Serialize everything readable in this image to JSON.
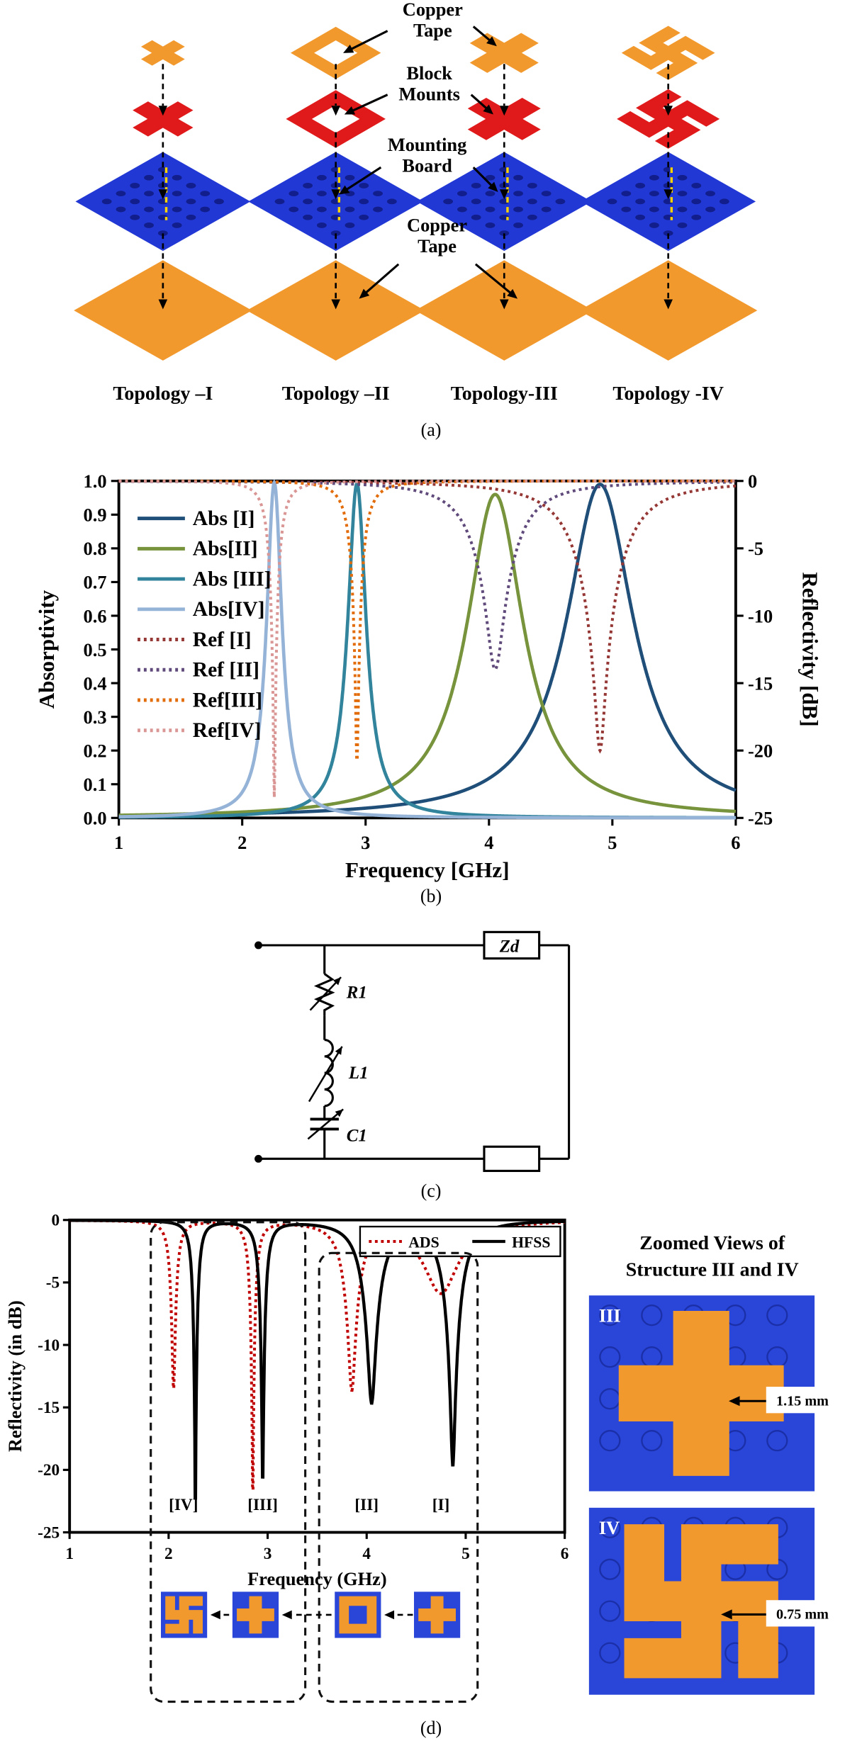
{
  "figure": {
    "captions": {
      "a": "(a)",
      "b": "(b)",
      "c": "(c)",
      "d": "(d)"
    }
  },
  "panel_a": {
    "annotations": {
      "copper_tape_top": "Copper\nTape",
      "block_mounts": "Block\nMounts",
      "mounting_board": "Mounting\nBoard",
      "copper_tape_ground": "Copper\nTape"
    },
    "topologies": [
      {
        "label": "Topology –I",
        "resonator_shape": "cross"
      },
      {
        "label": "Topology –II",
        "resonator_shape": "square-ring"
      },
      {
        "label": "Topology-III",
        "resonator_shape": "cross"
      },
      {
        "label": "Topology -IV",
        "resonator_shape": "swastika"
      }
    ],
    "colors": {
      "copper": "#F2992E",
      "block_mount": "#E01A1A",
      "board": "#2238D4",
      "board_hole": "#111E8C"
    }
  },
  "chart_data": [
    {
      "id": "absorptivity-reflectivity",
      "type": "line",
      "xlabel": "Frequency [GHz]",
      "ylabel_left": "Absorptivity",
      "ylabel_right": "Reflectivity [dB]",
      "xlim": [
        1,
        6
      ],
      "xticks": [
        1,
        2,
        3,
        4,
        5,
        6
      ],
      "ylim_left": [
        0.0,
        1.0
      ],
      "yticks_left": [
        0.0,
        0.1,
        0.2,
        0.3,
        0.4,
        0.5,
        0.6,
        0.7,
        0.8,
        0.9,
        1.0
      ],
      "ylim_right": [
        -25,
        0
      ],
      "yticks_right": [
        0,
        -5,
        -10,
        -15,
        -20,
        -25
      ],
      "legend_position": "top-left-inside",
      "series": [
        {
          "name": "Abs [I]",
          "kind": "absorptivity",
          "axis": "left",
          "style": "solid",
          "color": "#1F4E79",
          "f0_ghz": 4.9,
          "hwhm_ghz": 0.33,
          "peak_absorptivity": 0.99
        },
        {
          "name": "Abs[II]",
          "kind": "absorptivity",
          "axis": "left",
          "style": "solid",
          "color": "#77933C",
          "f0_ghz": 4.05,
          "hwhm_ghz": 0.28,
          "peak_absorptivity": 0.96
        },
        {
          "name": "Abs [III]",
          "kind": "absorptivity",
          "axis": "left",
          "style": "solid",
          "color": "#31849B",
          "f0_ghz": 2.93,
          "hwhm_ghz": 0.09,
          "peak_absorptivity": 0.992
        },
        {
          "name": "Abs[IV]",
          "kind": "absorptivity",
          "axis": "left",
          "style": "solid",
          "color": "#95B3D7",
          "f0_ghz": 2.26,
          "hwhm_ghz": 0.075,
          "peak_absorptivity": 0.9955
        },
        {
          "name": "Ref [I]",
          "kind": "reflectivity",
          "axis": "right",
          "style": "dotted",
          "color": "#953735",
          "f0_ghz": 4.9,
          "hwhm_ghz": 0.33,
          "peak_absorptivity": 0.99,
          "min_reflectivity_db": -20.0
        },
        {
          "name": "Ref [II]",
          "kind": "reflectivity",
          "axis": "right",
          "style": "dotted",
          "color": "#604A7B",
          "f0_ghz": 4.05,
          "hwhm_ghz": 0.28,
          "peak_absorptivity": 0.96,
          "min_reflectivity_db": -14.0
        },
        {
          "name": "Ref[III]",
          "kind": "reflectivity",
          "axis": "right",
          "style": "dotted",
          "color": "#E36C0A",
          "f0_ghz": 2.93,
          "hwhm_ghz": 0.09,
          "peak_absorptivity": 0.992,
          "min_reflectivity_db": -21.0
        },
        {
          "name": "Ref[IV]",
          "kind": "reflectivity",
          "axis": "right",
          "style": "dotted",
          "color": "#D99694",
          "f0_ghz": 2.26,
          "hwhm_ghz": 0.075,
          "peak_absorptivity": 0.9955,
          "min_reflectivity_db": -23.5
        }
      ],
      "resonant_frequencies_ghz": {
        "I": 4.9,
        "II": 4.05,
        "III": 2.93,
        "IV": 2.26
      }
    },
    {
      "id": "ads-vs-hfss",
      "type": "line",
      "xlabel": "Frequency (GHz)",
      "ylabel": "Reflectivity (in dB)",
      "xlim": [
        1,
        6
      ],
      "xticks": [
        1,
        2,
        3,
        4,
        5,
        6
      ],
      "ylim": [
        -25,
        0
      ],
      "yticks": [
        0,
        -5,
        -10,
        -15,
        -20,
        -25
      ],
      "legend": [
        "ADS",
        "HFSS"
      ],
      "series": [
        {
          "name": "ADS",
          "style": "dotted",
          "color": "#C00000",
          "dips": [
            {
              "structure": "[IV]",
              "f0_ghz": 2.05,
              "hwhm_ghz": 0.055,
              "depth_db": -13.5
            },
            {
              "structure": "[III]",
              "f0_ghz": 2.85,
              "hwhm_ghz": 0.055,
              "depth_db": -22.3
            },
            {
              "structure": "[II]",
              "f0_ghz": 3.85,
              "hwhm_ghz": 0.13,
              "depth_db": -13.3
            },
            {
              "structure": "[I]",
              "f0_ghz": 4.75,
              "hwhm_ghz": 0.3,
              "depth_db": -5.8
            }
          ]
        },
        {
          "name": "HFSS",
          "style": "solid",
          "color": "#000000",
          "dips": [
            {
              "structure": "[IV]",
              "f0_ghz": 2.27,
              "hwhm_ghz": 0.05,
              "depth_db": -23.5
            },
            {
              "structure": "[III]",
              "f0_ghz": 2.95,
              "hwhm_ghz": 0.06,
              "depth_db": -21.0
            },
            {
              "structure": "[II]",
              "f0_ghz": 4.05,
              "hwhm_ghz": 0.16,
              "depth_db": -14.5
            },
            {
              "structure": "[I]",
              "f0_ghz": 4.87,
              "hwhm_ghz": 0.16,
              "depth_db": -19.5
            }
          ]
        }
      ],
      "dip_labels": [
        {
          "label": "[IV]",
          "x_ghz": 2.15,
          "y_db": -23.2
        },
        {
          "label": "[III]",
          "x_ghz": 2.95,
          "y_db": -23.2
        },
        {
          "label": "[II]",
          "x_ghz": 4.0,
          "y_db": -23.2
        },
        {
          "label": "[I]",
          "x_ghz": 4.75,
          "y_db": -23.2
        }
      ],
      "structure_icons": [
        "swastika",
        "cross",
        "square-ring",
        "cross"
      ]
    }
  ],
  "circuit": {
    "r1": "R1",
    "l1": "L1",
    "c1": "C1",
    "zd": "Zd"
  },
  "zoomed_views": {
    "title_line1": "Zoomed Views of",
    "title_line2": "Structure III and IV",
    "panels": [
      {
        "label": "III",
        "shape": "cross",
        "measurement": "1.15 mm"
      },
      {
        "label": "IV",
        "shape": "swastika",
        "measurement": "0.75 mm"
      }
    ]
  }
}
